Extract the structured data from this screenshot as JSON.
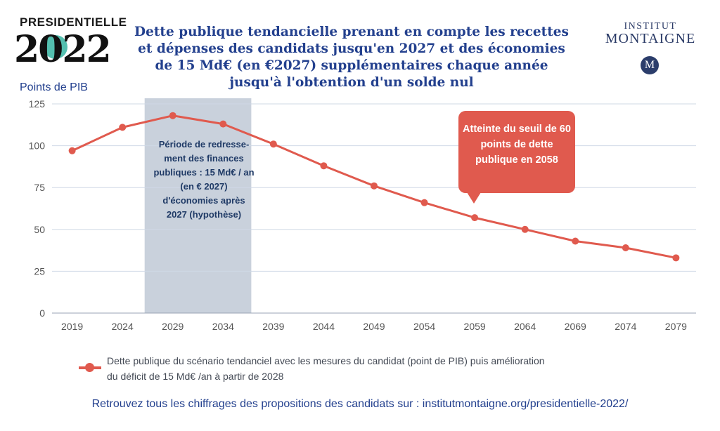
{
  "brand": {
    "left_logo_word": "PRESIDENTIELLE",
    "left_logo_year": "2022",
    "right_logo_line1": "INSTITUT",
    "right_logo_line2": "MONTAIGNE",
    "right_logo_mark": "M"
  },
  "chart_data": {
    "type": "line",
    "title": "Dette publique tendancielle prenant en compte les recettes et dépenses des candidats jusqu'en 2027 et des économies de 15 Md€ (en €2027) supplémentaires chaque année jusqu'à l'obtention d'un solde nul",
    "ylabel": "Points de PIB",
    "xlabel": "",
    "ylim": [
      0,
      125
    ],
    "yticks": [
      0,
      25,
      50,
      75,
      100,
      125
    ],
    "xlim": [
      2017,
      2081
    ],
    "xticks": [
      2019,
      2024,
      2029,
      2034,
      2039,
      2044,
      2049,
      2054,
      2059,
      2064,
      2069,
      2074,
      2079
    ],
    "grid": true,
    "series": [
      {
        "name": "Dette publique du scénario tendanciel avec les mesures du candidat (point de PIB) puis amélioration du déficit de 15 Md€ /an à partir de 2028",
        "x": [
          2019,
          2024,
          2029,
          2034,
          2039,
          2044,
          2049,
          2054,
          2059,
          2064,
          2069,
          2074,
          2079
        ],
        "y": [
          97,
          111,
          118,
          113,
          101,
          88,
          76,
          66,
          57,
          50,
          43,
          39,
          33
        ],
        "color": "#e05a4e"
      }
    ],
    "shaded_region": {
      "x": [
        2026.2,
        2036.8
      ],
      "color": "#c9d1dc",
      "text": "Période de redresse- ment des finances publiques : 15 Md€ / an (en € 2027) d'économies après 2027 (hypothèse)"
    },
    "annotation": "Atteinte du seuil de 60 points de dette publique en 2058",
    "legend_position": "bottom-left"
  },
  "footer": "Retrouvez tous les chiffrages des propositions des candidats sur : institutmontaigne.org/presidentielle-2022/"
}
